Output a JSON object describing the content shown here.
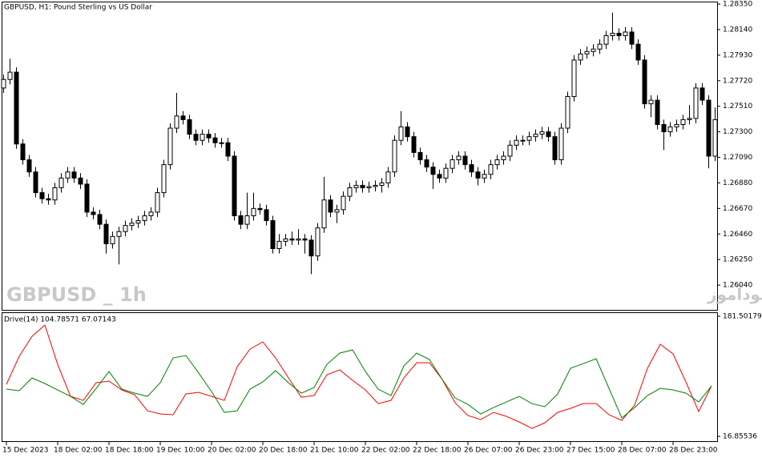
{
  "chart_data": [
    {
      "type": "candlestick",
      "title": "GBPUSD, H1:  Pound Sterling vs US Dollar",
      "annotations": [
        "GBPUSD _ 1h",
        "انتشار در سایت سودآموز"
      ],
      "color": "#000000",
      "up_color": "#ffffff",
      "open": [
        1.2766,
        1.2773,
        1.2779,
        1.272,
        1.2707,
        1.2697,
        1.268,
        1.2675,
        1.2674,
        1.2684,
        1.2692,
        1.2697,
        1.2692,
        1.2687,
        1.2664,
        1.2662,
        1.2654,
        1.2638,
        1.2644,
        1.2648,
        1.2653,
        1.2655,
        1.2657,
        1.2661,
        1.2664,
        1.268,
        1.2703,
        1.2733,
        1.2743,
        1.274,
        1.2728,
        1.2723,
        1.2728,
        1.2725,
        1.2721,
        1.2721,
        1.271,
        1.2661,
        1.2654,
        1.2661,
        1.2667,
        1.2666,
        1.2657,
        1.2634,
        1.264,
        1.2642,
        1.2641,
        1.2642,
        1.2641,
        1.2628,
        1.2651,
        1.2674,
        1.2664,
        1.2666,
        1.2677,
        1.2684,
        1.2686,
        1.2684,
        1.2685,
        1.2686,
        1.2688,
        1.2697,
        1.2723,
        1.2734,
        1.2726,
        1.2713,
        1.2707,
        1.2701,
        1.2695,
        1.2692,
        1.27,
        1.2707,
        1.271,
        1.2703,
        1.2697,
        1.2692,
        1.2695,
        1.2703,
        1.2707,
        1.271,
        1.2719,
        1.2723,
        1.2723,
        1.2726,
        1.2728,
        1.273,
        1.2726,
        1.2707,
        1.2733,
        1.2759,
        1.2789,
        1.2794,
        1.2796,
        1.2798,
        1.2802,
        1.2809,
        1.2811,
        1.2809,
        1.2812,
        1.2802,
        1.2789,
        1.2753,
        1.2756,
        1.2736,
        1.273,
        1.2734,
        1.2736,
        1.274,
        1.2741,
        1.2766,
        1.2756,
        1.271
      ],
      "high": [
        1.2777,
        1.279,
        1.2783,
        1.2724,
        1.2711,
        1.2701,
        1.2684,
        1.2679,
        1.2688,
        1.2696,
        1.2701,
        1.2701,
        1.2696,
        1.2691,
        1.2668,
        1.2666,
        1.2658,
        1.2648,
        1.2652,
        1.2657,
        1.2659,
        1.2661,
        1.2665,
        1.2668,
        1.2684,
        1.2707,
        1.2737,
        1.2762,
        1.2747,
        1.2744,
        1.2732,
        1.2732,
        1.2732,
        1.2729,
        1.2725,
        1.2725,
        1.2714,
        1.2665,
        1.268,
        1.268,
        1.2671,
        1.267,
        1.2661,
        1.2646,
        1.2646,
        1.2648,
        1.265,
        1.2646,
        1.2645,
        1.2655,
        1.2693,
        1.2678,
        1.267,
        1.2681,
        1.2688,
        1.269,
        1.269,
        1.2689,
        1.269,
        1.2692,
        1.2701,
        1.2727,
        1.2747,
        1.2738,
        1.273,
        1.2717,
        1.2711,
        1.2705,
        1.2699,
        1.2704,
        1.2711,
        1.2714,
        1.2714,
        1.2707,
        1.2701,
        1.2699,
        1.2707,
        1.2711,
        1.2714,
        1.2723,
        1.2727,
        1.2727,
        1.273,
        1.2732,
        1.2734,
        1.2734,
        1.273,
        1.2737,
        1.2763,
        1.2793,
        1.2798,
        1.28,
        1.2802,
        1.2806,
        1.2813,
        1.2828,
        1.2815,
        1.2816,
        1.2816,
        1.2806,
        1.2793,
        1.276,
        1.276,
        1.274,
        1.2738,
        1.274,
        1.2744,
        1.2752,
        1.277,
        1.277,
        1.276,
        1.275
      ],
      "low": [
        1.2762,
        1.2769,
        1.2716,
        1.2703,
        1.2693,
        1.2676,
        1.2671,
        1.267,
        1.267,
        1.268,
        1.2688,
        1.2688,
        1.2683,
        1.266,
        1.2658,
        1.265,
        1.263,
        1.2634,
        1.2621,
        1.2644,
        1.2649,
        1.2651,
        1.2653,
        1.2657,
        1.266,
        1.2676,
        1.2699,
        1.2729,
        1.2736,
        1.2724,
        1.2719,
        1.2719,
        1.2721,
        1.2717,
        1.2717,
        1.2706,
        1.2657,
        1.265,
        1.265,
        1.2657,
        1.2662,
        1.2653,
        1.263,
        1.263,
        1.2636,
        1.2637,
        1.2637,
        1.263,
        1.2613,
        1.2624,
        1.2647,
        1.266,
        1.2655,
        1.2662,
        1.2673,
        1.268,
        1.268,
        1.268,
        1.2681,
        1.268,
        1.2684,
        1.2693,
        1.2719,
        1.2722,
        1.2709,
        1.2703,
        1.2697,
        1.2683,
        1.2688,
        1.2688,
        1.2696,
        1.2703,
        1.2699,
        1.2693,
        1.2686,
        1.2688,
        1.2691,
        1.2699,
        1.2703,
        1.2706,
        1.2715,
        1.2719,
        1.2719,
        1.2722,
        1.2724,
        1.2722,
        1.2703,
        1.2703,
        1.2729,
        1.2755,
        1.2785,
        1.279,
        1.2792,
        1.2794,
        1.2798,
        1.2805,
        1.2805,
        1.2805,
        1.2798,
        1.2785,
        1.2749,
        1.2742,
        1.2732,
        1.2715,
        1.2726,
        1.273,
        1.2732,
        1.2736,
        1.2737,
        1.2752,
        1.27,
        1.2706
      ],
      "close": [
        1.2773,
        1.2779,
        1.272,
        1.2707,
        1.2697,
        1.268,
        1.2675,
        1.2674,
        1.2684,
        1.2692,
        1.2697,
        1.2692,
        1.2687,
        1.2664,
        1.2662,
        1.2654,
        1.2638,
        1.2644,
        1.2648,
        1.2653,
        1.2655,
        1.2657,
        1.2661,
        1.2664,
        1.268,
        1.2703,
        1.2733,
        1.2743,
        1.274,
        1.2728,
        1.2723,
        1.2728,
        1.2725,
        1.2721,
        1.2721,
        1.271,
        1.2661,
        1.2654,
        1.2661,
        1.2667,
        1.2666,
        1.2657,
        1.2634,
        1.264,
        1.2642,
        1.2641,
        1.2642,
        1.2641,
        1.2628,
        1.2651,
        1.2674,
        1.2664,
        1.2666,
        1.2677,
        1.2684,
        1.2686,
        1.2684,
        1.2685,
        1.2686,
        1.2688,
        1.2697,
        1.2723,
        1.2734,
        1.2726,
        1.2713,
        1.2707,
        1.2701,
        1.2695,
        1.2692,
        1.27,
        1.2707,
        1.271,
        1.2703,
        1.2697,
        1.2692,
        1.2695,
        1.2703,
        1.2707,
        1.271,
        1.2719,
        1.2723,
        1.2723,
        1.2726,
        1.2728,
        1.273,
        1.2726,
        1.2707,
        1.2733,
        1.2759,
        1.2789,
        1.2794,
        1.2796,
        1.2798,
        1.2802,
        1.2809,
        1.2811,
        1.2809,
        1.2812,
        1.2802,
        1.2789,
        1.2753,
        1.2756,
        1.2736,
        1.273,
        1.2734,
        1.2736,
        1.274,
        1.2741,
        1.2766,
        1.2756,
        1.271,
        1.274
      ],
      "ylim": [
        1.2583,
        1.2837
      ],
      "yticks": [
        {
          "value": 1.2835,
          "label": "1.28350"
        },
        {
          "value": 1.2814,
          "label": "1.28140"
        },
        {
          "value": 1.2793,
          "label": "1.27930"
        },
        {
          "value": 1.2772,
          "label": "1.27720"
        },
        {
          "value": 1.2751,
          "label": "1.27510"
        },
        {
          "value": 1.273,
          "label": "1.27300"
        },
        {
          "value": 1.2709,
          "label": "1.27090"
        },
        {
          "value": 1.2688,
          "label": "1.26880"
        },
        {
          "value": 1.2667,
          "label": "1.26670"
        },
        {
          "value": 1.2646,
          "label": "1.26460"
        },
        {
          "value": 1.2625,
          "label": "1.26250"
        },
        {
          "value": 1.2604,
          "label": "1.26040"
        }
      ]
    },
    {
      "type": "line",
      "title": "Drive(14) 104.78571 67.07143",
      "categories": [
        "15 Dec 2023",
        null,
        null,
        null,
        "18 Dec 02:00",
        null,
        null,
        null,
        "18 Dec 18:00",
        null,
        null,
        null,
        "19 Dec 10:00",
        null,
        null,
        null,
        "20 Dec 02:00",
        null,
        null,
        null,
        "20 Dec 18:00",
        null,
        null,
        null,
        "21 Dec 10:00",
        null,
        null,
        null,
        "22 Dec 02:00",
        null,
        null,
        null,
        "22 Dec 18:00",
        null,
        null,
        null,
        "26 Dec 07:00",
        null,
        null,
        null,
        "26 Dec 23:00",
        null,
        null,
        null,
        "27 Dec 15:00",
        null,
        null,
        null,
        "28 Dec 07:00",
        null,
        null,
        null,
        "28 Dec 23:00",
        null,
        null,
        null
      ],
      "series": [
        {
          "color": "#ff0000",
          "values": [
            88.2,
            126.6,
            154.1,
            169.4,
            115.6,
            71.7,
            66.2,
            90.4,
            92.6,
            80.5,
            73.9,
            52.0,
            47.6,
            46.5,
            75.0,
            77.2,
            71.7,
            66.2,
            112.3,
            136.5,
            146.4,
            124.4,
            97.0,
            70.6,
            72.8,
            101.4,
            108.0,
            93.7,
            80.5,
            61.8,
            66.2,
            97.0,
            117.8,
            117.8,
            94.8,
            62.9,
            45.4,
            39.9,
            49.8,
            44.3,
            36.6,
            27.8,
            35.5,
            49.8,
            55.3,
            61.8,
            61.8,
            46.5,
            38.8,
            59.7,
            110.2,
            143.1,
            129.9,
            91.5,
            50.9,
            86.0
          ]
        },
        {
          "color": "#008000",
          "values": [
            81.6,
            79.4,
            97.0,
            89.3,
            80.5,
            71.7,
            60.7,
            82.7,
            105.8,
            81.6,
            76.1,
            71.7,
            90.4,
            124.4,
            127.7,
            103.6,
            78.3,
            49.8,
            52.0,
            81.6,
            91.5,
            106.9,
            90.4,
            76.1,
            83.8,
            115.6,
            131.0,
            135.4,
            105.8,
            81.6,
            72.8,
            113.4,
            131.0,
            122.2,
            94.8,
            69.5,
            60.7,
            47.6,
            56.4,
            64.0,
            71.7,
            61.8,
            57.5,
            75.0,
            110.2,
            116.7,
            123.3,
            82.7,
            42.1,
            56.4,
            72.8,
            82.7,
            80.5,
            76.1,
            64.0,
            86.0
          ]
        }
      ],
      "ylim": [
        9.17,
        185.89
      ],
      "yticks": [
        181.50179,
        16.85536
      ]
    }
  ]
}
